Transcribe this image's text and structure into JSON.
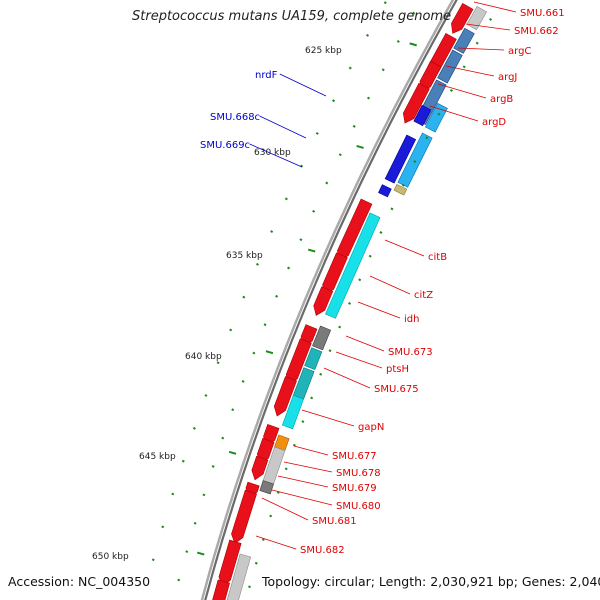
{
  "header": {
    "title": "Streptococcus mutans UA159, complete genome"
  },
  "footer": {
    "accession": "Accession: NC_004350",
    "summary": "Topology: circular; Length: 2,030,921 bp; Genes: 2,040"
  },
  "scale_labels": [
    "625 kbp",
    "630 kbp",
    "635 kbp",
    "640 kbp",
    "645 kbp",
    "650 kbp"
  ],
  "colors": {
    "backbone": "#888888",
    "forward_cds": "#e8101a",
    "reverse_cds_blue": "#1a1ad8",
    "cog_blue": "#2ab3f0",
    "cog_steel": "#4a7fb8",
    "cog_cyan": "#18e0e8",
    "cog_teal": "#20b4b8",
    "cog_grey": "#7a7a7a",
    "cog_light": "#c8c8c8",
    "cog_orange": "#f09010",
    "cog_tan": "#c8b878",
    "gc_tick": "#1a8c1a",
    "label_red": "#dd0000",
    "label_blue": "#0000cc"
  },
  "gene_labels": {
    "right": [
      "SMU.661",
      "SMU.662",
      "argC",
      "argJ",
      "argB",
      "argD",
      "citB",
      "citZ",
      "idh",
      "SMU.673",
      "ptsH",
      "SMU.675",
      "gapN",
      "SMU.677",
      "SMU.678",
      "SMU.679",
      "SMU.680",
      "SMU.681",
      "SMU.682"
    ],
    "left": [
      "nrdF",
      "SMU.668c",
      "SMU.669c"
    ]
  }
}
